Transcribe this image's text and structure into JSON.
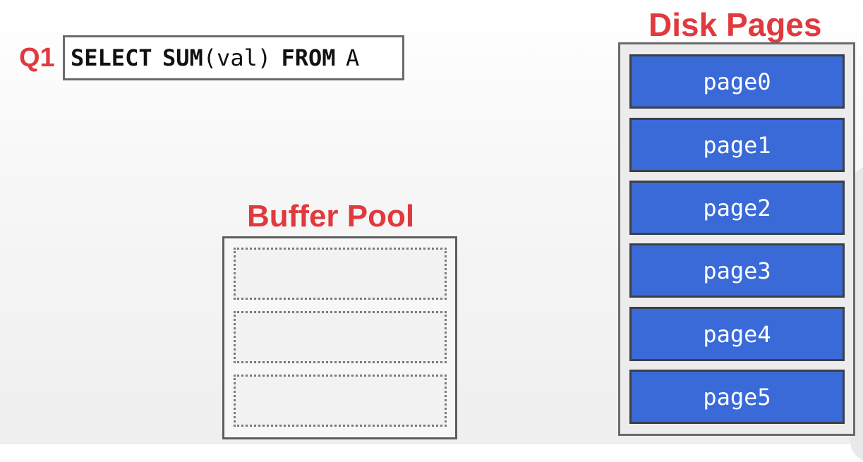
{
  "query": {
    "label": "Q1",
    "tokens": [
      {
        "text": "SELECT",
        "bold": true
      },
      {
        "text": "SUM",
        "bold": true
      },
      {
        "text": "(val)",
        "bold": false
      },
      {
        "text": "FROM",
        "bold": true
      },
      {
        "text": "A",
        "bold": false
      }
    ]
  },
  "buffer_pool": {
    "title": "Buffer Pool",
    "slots": [
      "",
      "",
      ""
    ]
  },
  "disk_pages": {
    "title": "Disk Pages",
    "pages": [
      "page0",
      "page1",
      "page2",
      "page3",
      "page4",
      "page5"
    ]
  },
  "colors": {
    "accent_red": "#e0393e",
    "page_blue": "#3a6ad8",
    "border_gray": "#6b6b6b"
  }
}
